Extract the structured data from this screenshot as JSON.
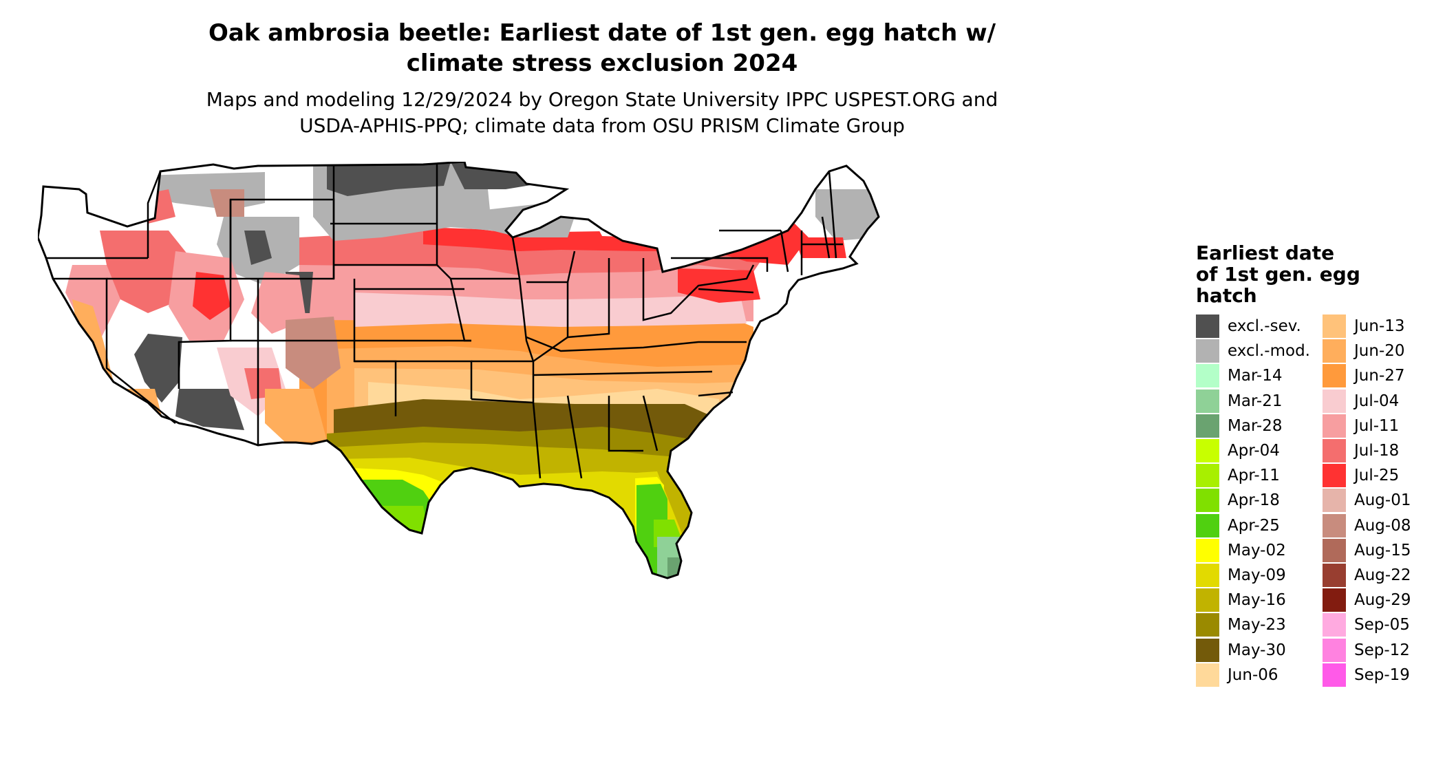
{
  "title_lines": [
    "Oak ambrosia beetle: Earliest date of 1st gen. egg hatch w/",
    "climate stress exclusion 2024"
  ],
  "subtitle_lines": [
    "Maps and modeling 12/29/2024 by Oregon State University IPPC USPEST.ORG and",
    "USDA-APHIS-PPQ; climate data from OSU PRISM Climate Group"
  ],
  "legend": {
    "title_lines": [
      "Earliest date",
      "of 1st gen. egg",
      "hatch"
    ],
    "columns": [
      [
        {
          "label": "excl.-sev.",
          "color": "#505050"
        },
        {
          "label": "excl.-mod.",
          "color": "#b2b2b2"
        },
        {
          "label": "Mar-14",
          "color": "#b3ffc8"
        },
        {
          "label": "Mar-21",
          "color": "#8fd197"
        },
        {
          "label": "Mar-28",
          "color": "#6aa370"
        },
        {
          "label": "Apr-04",
          "color": "#c8ff00"
        },
        {
          "label": "Apr-11",
          "color": "#a8ef00"
        },
        {
          "label": "Apr-18",
          "color": "#80e000"
        },
        {
          "label": "Apr-25",
          "color": "#50d010"
        },
        {
          "label": "May-02",
          "color": "#ffff00"
        },
        {
          "label": "May-09",
          "color": "#e2da00"
        },
        {
          "label": "May-16",
          "color": "#c1b300"
        },
        {
          "label": "May-23",
          "color": "#9a8a00"
        },
        {
          "label": "May-30",
          "color": "#735a0a"
        },
        {
          "label": "Jun-06",
          "color": "#ffd99a"
        }
      ],
      [
        {
          "label": "Jun-13",
          "color": "#ffc27a"
        },
        {
          "label": "Jun-20",
          "color": "#ffae5c"
        },
        {
          "label": "Jun-27",
          "color": "#ff9a3c"
        },
        {
          "label": "Jul-04",
          "color": "#f9ccd0"
        },
        {
          "label": "Jul-11",
          "color": "#f79ea0"
        },
        {
          "label": "Jul-18",
          "color": "#f46e6e"
        },
        {
          "label": "Jul-25",
          "color": "#ff3232"
        },
        {
          "label": "Aug-01",
          "color": "#e6b4aa"
        },
        {
          "label": "Aug-08",
          "color": "#c88c7e"
        },
        {
          "label": "Aug-15",
          "color": "#b06a5a"
        },
        {
          "label": "Aug-22",
          "color": "#983e30"
        },
        {
          "label": "Aug-29",
          "color": "#821c10"
        },
        {
          "label": "Sep-05",
          "color": "#ffaae0"
        },
        {
          "label": "Sep-12",
          "color": "#ff82e0"
        },
        {
          "label": "Sep-19",
          "color": "#ff5ae8"
        }
      ]
    ]
  }
}
